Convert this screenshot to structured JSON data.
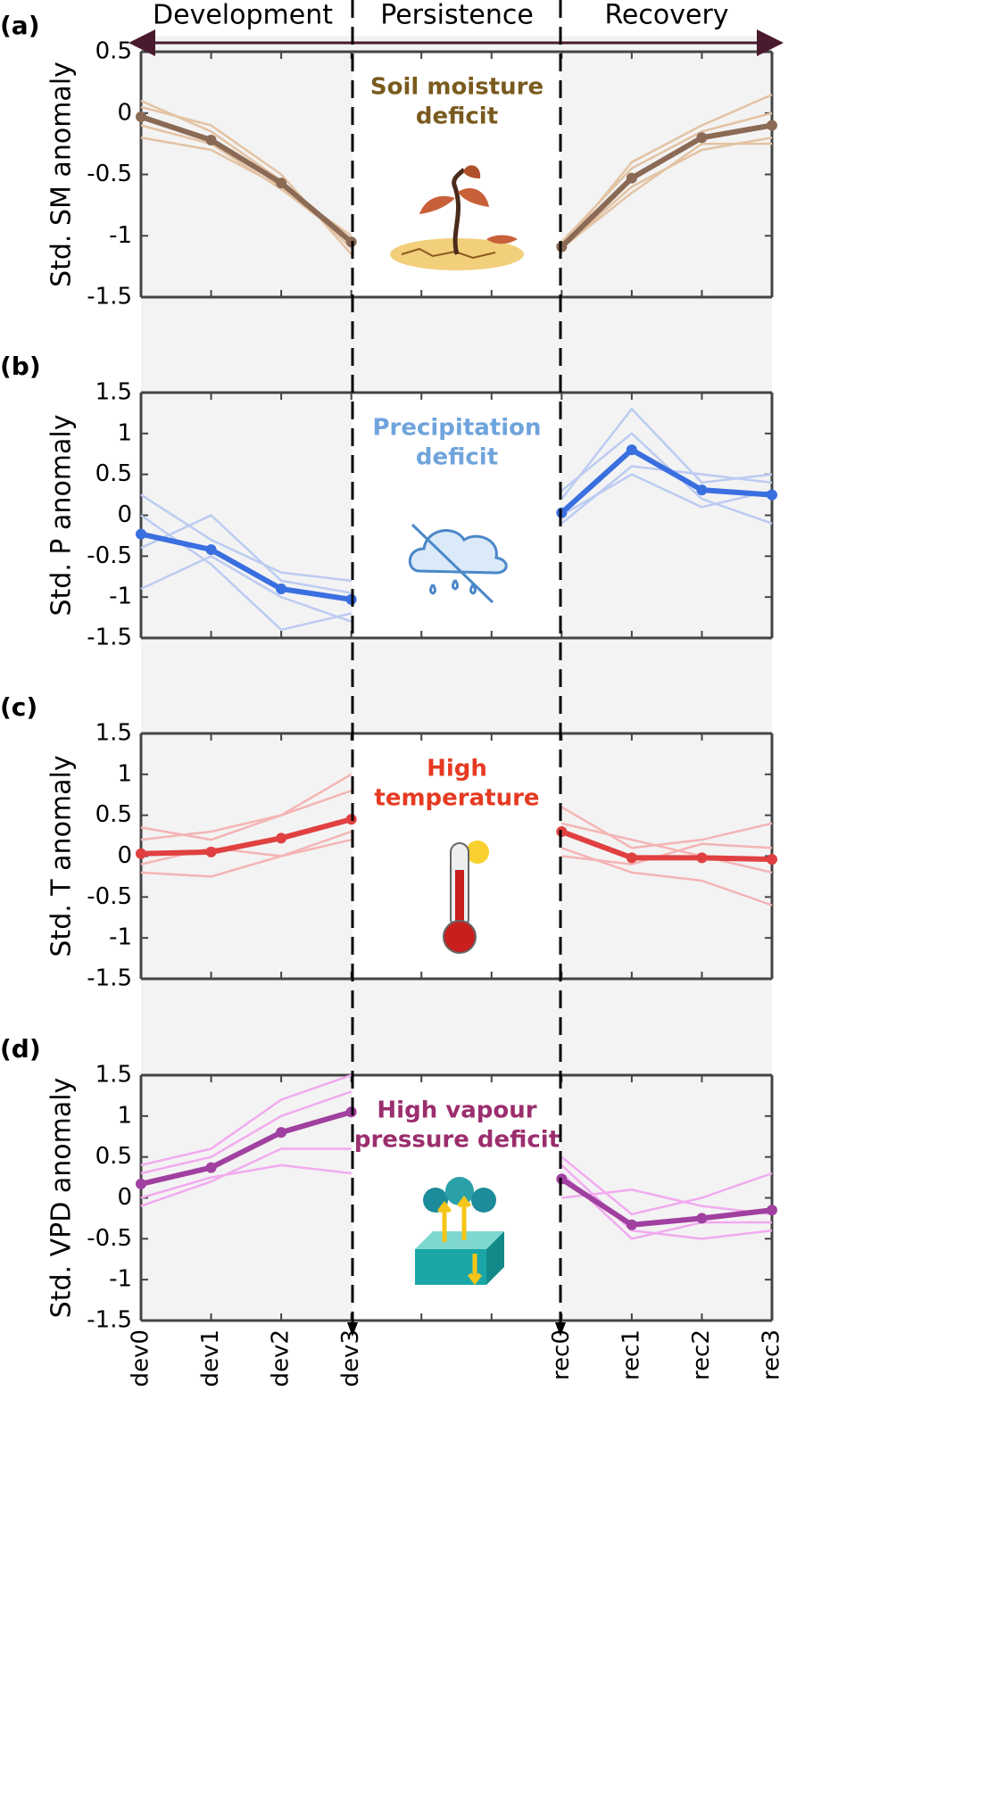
{
  "figure": {
    "phases": [
      "Development",
      "Persistence",
      "Recovery"
    ]
  },
  "chart_data": [
    {
      "type": "line",
      "panel_label": "(a)",
      "ylabel": "Std. SM anomaly",
      "annotation": [
        "Soil moisture",
        "deficit"
      ],
      "annotation_color": "#7a5a1e",
      "ylim": [
        -1.5,
        0.5
      ],
      "yticks": [
        -1.5,
        -1,
        -0.5,
        0,
        0.5
      ],
      "series": [
        {
          "color": "#e3c3a3",
          "values": [
            0.1,
            -0.15,
            -0.55,
            -1.1,
            null,
            null,
            -1.1,
            -0.4,
            -0.1,
            0.15
          ]
        },
        {
          "color": "#e3c3a3",
          "values": [
            -0.2,
            -0.3,
            -0.6,
            -1.0,
            null,
            null,
            -1.1,
            -0.6,
            -0.3,
            -0.2
          ]
        },
        {
          "color": "#e3c3a3",
          "values": [
            0.05,
            -0.1,
            -0.5,
            -1.15,
            null,
            null,
            -1.05,
            -0.45,
            -0.15,
            0.0
          ]
        },
        {
          "color": "#e3c3a3",
          "values": [
            -0.1,
            -0.25,
            -0.62,
            -1.05,
            null,
            null,
            -1.1,
            -0.65,
            -0.25,
            -0.25
          ]
        },
        {
          "color": "#8b6a55",
          "mean": true,
          "values": [
            -0.03,
            -0.22,
            -0.57,
            -1.05,
            null,
            null,
            -1.09,
            -0.53,
            -0.2,
            -0.1
          ]
        }
      ]
    },
    {
      "type": "line",
      "panel_label": "(b)",
      "ylabel": "Std. P anomaly",
      "annotation": [
        "Precipitation",
        "deficit"
      ],
      "annotation_color": "#6fa4dc",
      "ylim": [
        -1.5,
        1.5
      ],
      "yticks": [
        -1.5,
        -1,
        -0.5,
        0,
        0.5,
        1,
        1.5
      ],
      "series": [
        {
          "color": "#bccbf2",
          "values": [
            0.25,
            -0.3,
            -0.7,
            -0.8,
            null,
            null,
            0.2,
            1.3,
            0.4,
            0.5
          ]
        },
        {
          "color": "#bccbf2",
          "values": [
            -0.9,
            -0.5,
            -1.0,
            -1.3,
            null,
            null,
            0.0,
            0.5,
            0.1,
            0.3
          ]
        },
        {
          "color": "#bccbf2",
          "values": [
            0.0,
            -0.6,
            -1.4,
            -1.2,
            null,
            null,
            0.3,
            1.0,
            0.2,
            -0.1
          ]
        },
        {
          "color": "#bccbf2",
          "values": [
            -0.4,
            0.0,
            -0.8,
            -0.95,
            null,
            null,
            -0.1,
            0.6,
            0.5,
            0.4
          ]
        },
        {
          "color": "#3a6fe0",
          "mean": true,
          "values": [
            -0.23,
            -0.42,
            -0.9,
            -1.03,
            null,
            null,
            0.03,
            0.8,
            0.31,
            0.25
          ]
        }
      ]
    },
    {
      "type": "line",
      "panel_label": "(c)",
      "ylabel": "Std. T anomaly",
      "annotation": [
        "High",
        "temperature"
      ],
      "annotation_color": "#e63a22",
      "ylim": [
        -1.5,
        1.5
      ],
      "yticks": [
        -1.5,
        -1,
        -0.5,
        0,
        0.5,
        1,
        1.5
      ],
      "series": [
        {
          "color": "#f5b4b4",
          "values": [
            0.2,
            0.3,
            0.5,
            1.0,
            null,
            null,
            0.6,
            0.1,
            0.2,
            0.4
          ]
        },
        {
          "color": "#f5b4b4",
          "values": [
            -0.2,
            -0.25,
            0.0,
            0.3,
            null,
            null,
            0.1,
            -0.2,
            -0.3,
            -0.6
          ]
        },
        {
          "color": "#f5b4b4",
          "values": [
            0.35,
            0.2,
            0.5,
            0.8,
            null,
            null,
            0.4,
            0.2,
            0.0,
            -0.2
          ]
        },
        {
          "color": "#f5b4b4",
          "values": [
            -0.1,
            0.1,
            0.0,
            0.2,
            null,
            null,
            0.0,
            -0.1,
            0.15,
            0.1
          ]
        },
        {
          "color": "#e04040",
          "mean": true,
          "values": [
            0.03,
            0.05,
            0.22,
            0.45,
            null,
            null,
            0.3,
            -0.02,
            -0.02,
            -0.04
          ]
        }
      ]
    },
    {
      "type": "line",
      "panel_label": "(d)",
      "ylabel": "Std. VPD anomaly",
      "annotation": [
        "High vapour",
        "pressure deficit"
      ],
      "annotation_color": "#9b2e6e",
      "ylim": [
        -1.5,
        1.5
      ],
      "yticks": [
        -1.5,
        -1,
        -0.5,
        0,
        0.5,
        1,
        1.5
      ],
      "categories": [
        "dev0",
        "dev1",
        "dev2",
        "dev3",
        null,
        null,
        "rec0",
        "rec1",
        "rec2",
        "rec3"
      ],
      "series": [
        {
          "color": "#f2aaf0",
          "values": [
            0.4,
            0.6,
            1.2,
            1.5,
            null,
            null,
            0.5,
            -0.2,
            0.0,
            0.3
          ]
        },
        {
          "color": "#f2aaf0",
          "values": [
            -0.1,
            0.2,
            0.6,
            0.6,
            null,
            null,
            0.3,
            -0.5,
            -0.3,
            -0.3
          ]
        },
        {
          "color": "#f2aaf0",
          "values": [
            0.3,
            0.5,
            1.0,
            1.3,
            null,
            null,
            0.0,
            0.1,
            -0.1,
            -0.2
          ]
        },
        {
          "color": "#f2aaf0",
          "values": [
            0.0,
            0.25,
            0.4,
            0.3,
            null,
            null,
            0.4,
            -0.4,
            -0.5,
            -0.4
          ]
        },
        {
          "color": "#a040a0",
          "mean": true,
          "values": [
            0.17,
            0.37,
            0.8,
            1.05,
            null,
            null,
            0.23,
            -0.33,
            -0.25,
            -0.15
          ]
        }
      ]
    }
  ]
}
